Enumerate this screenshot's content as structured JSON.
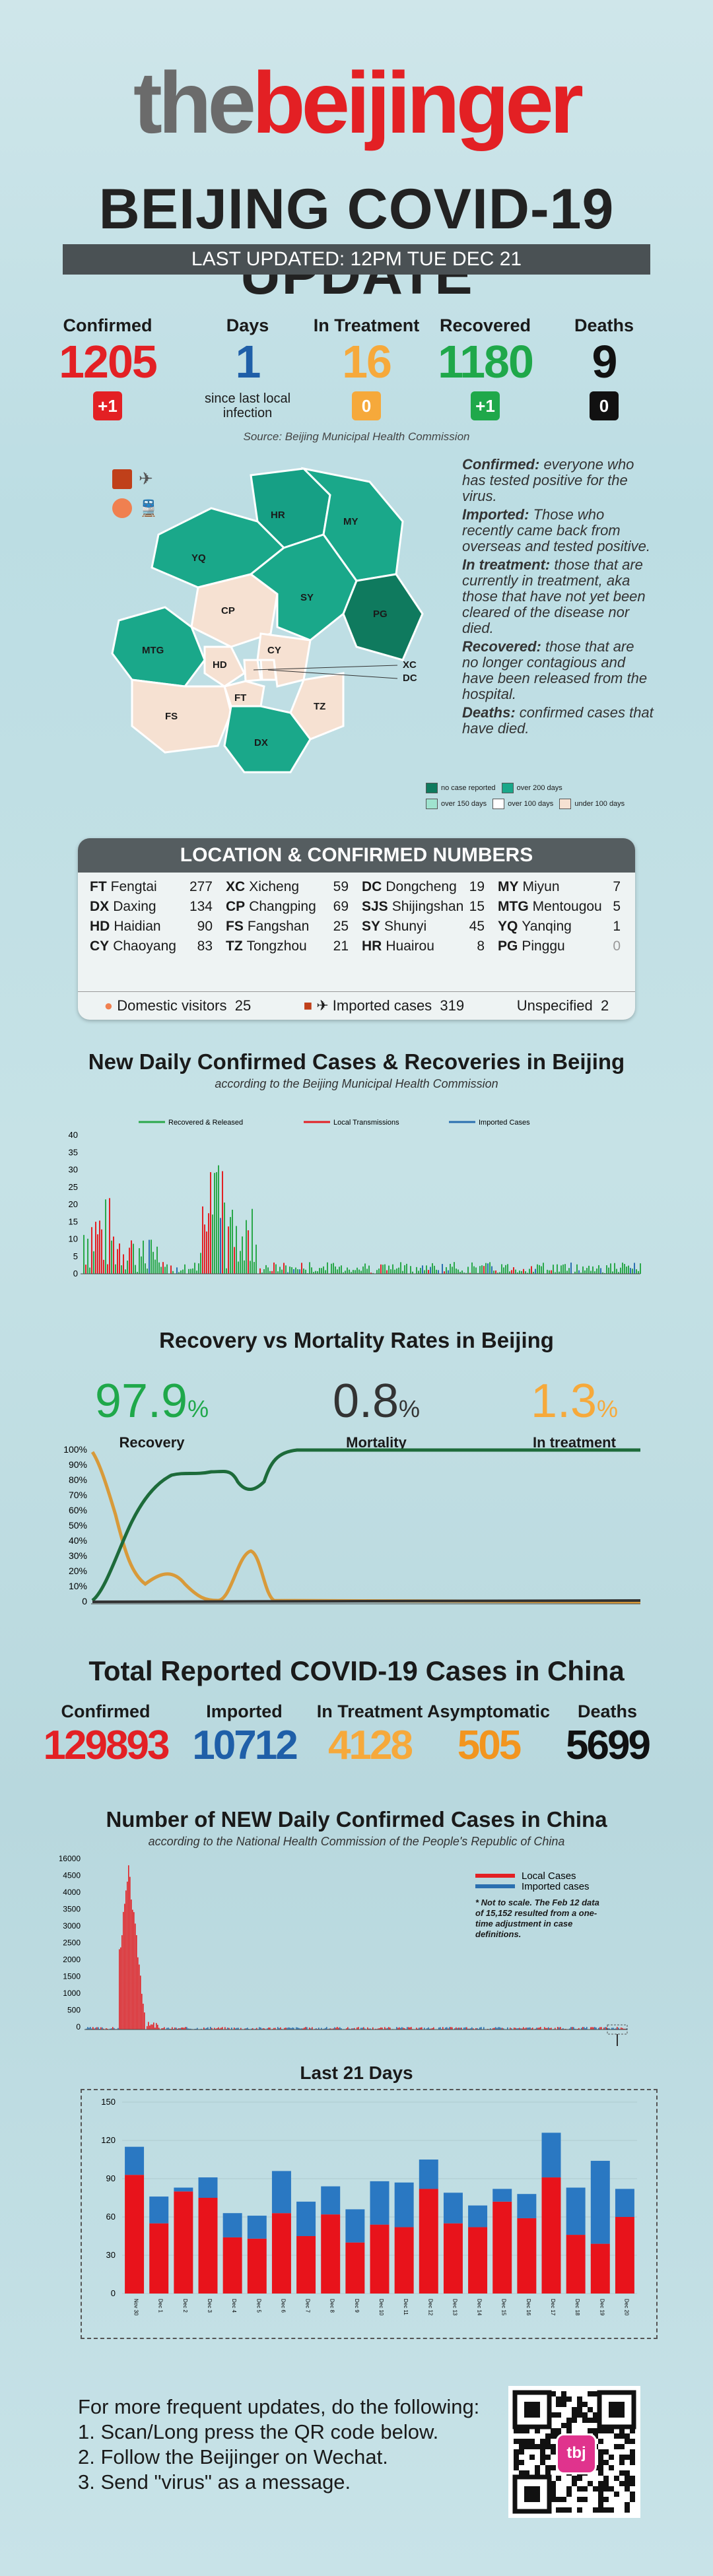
{
  "header": {
    "logo_the": "the",
    "logo_beijinger": "beijinger",
    "title": "BEIJING COVID-19 UPDATE",
    "last_updated": "LAST UPDATED: 12PM TUE DEC 21"
  },
  "stats": {
    "confirmed": {
      "label": "Confirmed",
      "value": "1205",
      "change": "+1"
    },
    "days": {
      "label": "Days",
      "value": "1",
      "sub": "since last local infection"
    },
    "in_treatment": {
      "label": "In Treatment",
      "value": "16",
      "change": "0"
    },
    "recovered": {
      "label": "Recovered",
      "value": "1180",
      "change": "+1"
    },
    "deaths": {
      "label": "Deaths",
      "value": "9",
      "change": "0"
    },
    "source": "Source: Beijing Municipal Health Commission"
  },
  "definitions": [
    {
      "term": "Confirmed:",
      "text": " everyone who has tested positive for the virus."
    },
    {
      "term": "Imported:",
      "text": " Those who recently came back from overseas and tested positive."
    },
    {
      "term": "In treatment:",
      "text": " those that are currently in treatment, aka those that have not yet been cleared of the disease nor died."
    },
    {
      "term": "Recovered:",
      "text": " those that are no longer contagious and have been released from the hospital."
    },
    {
      "term": "Deaths:",
      "text": " confirmed cases that have died."
    }
  ],
  "map": {
    "labels": [
      "YQ",
      "HR",
      "MY",
      "PG",
      "CP",
      "SY",
      "MTG",
      "HD",
      "XC",
      "DC",
      "CY",
      "FT",
      "FS",
      "TZ",
      "DX"
    ],
    "legend": [
      "no case reported",
      "over 200 days",
      "over 150 days",
      "over 100 days",
      "under 100 days"
    ]
  },
  "locations": {
    "header": "LOCATION & CONFIRMED NUMBERS",
    "items": [
      {
        "code": "FT",
        "name": "Fengtai",
        "n": "277"
      },
      {
        "code": "XC",
        "name": "Xicheng",
        "n": "59"
      },
      {
        "code": "DC",
        "name": "Dongcheng",
        "n": "19"
      },
      {
        "code": "MY",
        "name": "Miyun",
        "n": "7"
      },
      {
        "code": "DX",
        "name": "Daxing",
        "n": "134"
      },
      {
        "code": "CP",
        "name": "Changping",
        "n": "69"
      },
      {
        "code": "SJS",
        "name": "Shijingshan",
        "n": "15"
      },
      {
        "code": "MTG",
        "name": "Mentougou",
        "n": "5"
      },
      {
        "code": "HD",
        "name": "Haidian",
        "n": "90"
      },
      {
        "code": "FS",
        "name": "Fangshan",
        "n": "25"
      },
      {
        "code": "SY",
        "name": "Shunyi",
        "n": "45"
      },
      {
        "code": "YQ",
        "name": "Yanqing",
        "n": "1"
      },
      {
        "code": "CY",
        "name": "Chaoyang",
        "n": "83"
      },
      {
        "code": "TZ",
        "name": "Tongzhou",
        "n": "21"
      },
      {
        "code": "HR",
        "name": "Huairou",
        "n": "8"
      },
      {
        "code": "PG",
        "name": "Pinggu",
        "n": "0"
      }
    ],
    "domestic_label": "Domestic visitors",
    "domestic_n": "25",
    "imported_label": "Imported cases",
    "imported_n": "319",
    "unspecified_label": "Unspecified",
    "unspecified_n": "2"
  },
  "beijing_daily": {
    "title": "New Daily Confirmed Cases & Recoveries in Beijing",
    "subtitle": "according to the Beijing Municipal Health Commission",
    "legend": [
      "Recovered & Released",
      "Local Transmissions",
      "Imported Cases"
    ],
    "yticks": [
      "40",
      "35",
      "30",
      "25",
      "20",
      "15",
      "10",
      "5",
      "0"
    ],
    "colors": {
      "recovered": "#2aa84a",
      "local": "#e32024",
      "imported": "#2a6fb0"
    }
  },
  "rates": {
    "title": "Recovery vs Mortality Rates in Beijing",
    "recovery": {
      "value": "97.9",
      "unit": "%",
      "label": "Recovery"
    },
    "mortality": {
      "value": "0.8",
      "unit": "%",
      "label": "Mortality"
    },
    "treatment": {
      "value": "1.3",
      "unit": "%",
      "label": "In treatment"
    },
    "yticks": [
      "100%",
      "90%",
      "80%",
      "70%",
      "60%",
      "50%",
      "40%",
      "30%",
      "20%",
      "10%",
      "0"
    ]
  },
  "china": {
    "title": "Total Reported COVID-19 Cases in China",
    "confirmed": {
      "label": "Confirmed",
      "value": "129893"
    },
    "imported": {
      "label": "Imported",
      "value": "10712"
    },
    "in_treatment": {
      "label": "In Treatment",
      "value": "4128"
    },
    "asymptomatic": {
      "label": "Asymptomatic",
      "value": "505"
    },
    "deaths": {
      "label": "Deaths",
      "value": "5699"
    }
  },
  "china_daily": {
    "title": "Number of NEW Daily Confirmed Cases in China",
    "subtitle": "according to the National Health Commission of the People's Republic of China",
    "legend_local": "Local Cases",
    "legend_imported": "Imported cases",
    "note": "* Not to scale. The Feb 12 data of 15,152 resulted from a one-time adjustment in case definitions.",
    "yticks": [
      "16000",
      "4500",
      "4000",
      "3500",
      "3000",
      "2500",
      "2000",
      "1500",
      "1000",
      "500",
      "0"
    ]
  },
  "chart_data": {
    "type": "bar",
    "title": "Last 21 Days",
    "ylim": [
      0,
      150
    ],
    "yticks": [
      "150",
      "120",
      "90",
      "60",
      "30",
      "0"
    ],
    "categories": [
      "Nov 30",
      "Dec 1",
      "Dec 2",
      "Dec 3",
      "Dec 4",
      "Dec 5",
      "Dec 6",
      "Dec 7",
      "Dec 8",
      "Dec 9",
      "Dec 10",
      "Dec 11",
      "Dec 12",
      "Dec 13",
      "Dec 14",
      "Dec 15",
      "Dec 16",
      "Dec 17",
      "Dec 18",
      "Dec 19",
      "Dec 20"
    ],
    "series": [
      {
        "name": "Local Cases",
        "color": "#e8131b",
        "values": [
          93,
          55,
          80,
          75,
          44,
          43,
          63,
          45,
          62,
          40,
          54,
          52,
          82,
          55,
          52,
          72,
          59,
          91,
          46,
          39,
          60
        ]
      },
      {
        "name": "Imported cases",
        "color": "#2a78c2",
        "values": [
          22,
          21,
          3,
          16,
          19,
          18,
          33,
          27,
          22,
          26,
          34,
          35,
          23,
          24,
          17,
          10,
          19,
          35,
          37,
          65,
          22
        ]
      }
    ]
  },
  "footer": {
    "intro": "For more frequent updates, do the following:",
    "step1": "1. Scan/Long press the QR code below.",
    "step2": "2. Follow the Beijinger on Wechat.",
    "step3": "3. Send \"virus\" as a message.",
    "qr_badge": "tbj"
  }
}
